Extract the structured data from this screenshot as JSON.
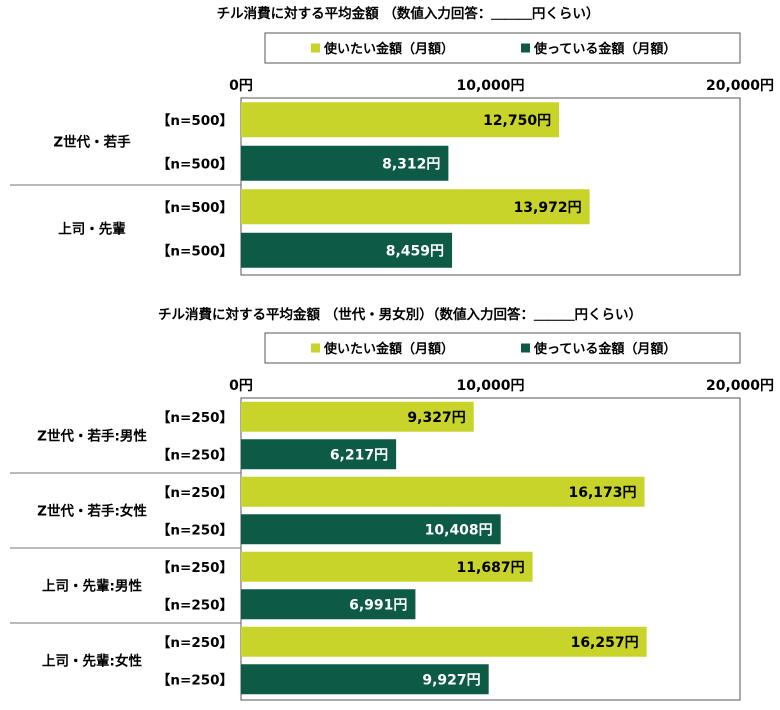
{
  "colors": {
    "want": "#c8d42a",
    "spend": "#0d5a47",
    "frame": "#555555"
  },
  "chart_data": [
    {
      "type": "bar",
      "orientation": "horizontal",
      "title": "チル消費に対する平均金額 （数値入力回答：＿＿＿円くらい）",
      "legend": [
        "使いたい金額（月額）",
        "使っている金額（月額）"
      ],
      "xlim": [
        0,
        20000
      ],
      "ticks": [
        "0円",
        "10,000円",
        "20,000円"
      ],
      "groups": [
        {
          "label": "Z世代・若手",
          "bars": [
            {
              "series": 0,
              "n": "【n=500】",
              "value": 12750,
              "label": "12,750円"
            },
            {
              "series": 1,
              "n": "【n=500】",
              "value": 8312,
              "label": "8,312円"
            }
          ]
        },
        {
          "label": "上司・先輩",
          "bars": [
            {
              "series": 0,
              "n": "【n=500】",
              "value": 13972,
              "label": "13,972円"
            },
            {
              "series": 1,
              "n": "【n=500】",
              "value": 8459,
              "label": "8,459円"
            }
          ]
        }
      ]
    },
    {
      "type": "bar",
      "orientation": "horizontal",
      "title": "チル消費に対する平均金額 （世代・男女別）（数値入力回答：＿＿＿円くらい）",
      "legend": [
        "使いたい金額（月額）",
        "使っている金額（月額）"
      ],
      "xlim": [
        0,
        20000
      ],
      "ticks": [
        "0円",
        "10,000円",
        "20,000円"
      ],
      "groups": [
        {
          "label": "Z世代・若手:男性",
          "bars": [
            {
              "series": 0,
              "n": "【n=250】",
              "value": 9327,
              "label": "9,327円"
            },
            {
              "series": 1,
              "n": "【n=250】",
              "value": 6217,
              "label": "6,217円"
            }
          ]
        },
        {
          "label": "Z世代・若手:女性",
          "bars": [
            {
              "series": 0,
              "n": "【n=250】",
              "value": 16173,
              "label": "16,173円"
            },
            {
              "series": 1,
              "n": "【n=250】",
              "value": 10408,
              "label": "10,408円"
            }
          ]
        },
        {
          "label": "上司・先輩:男性",
          "bars": [
            {
              "series": 0,
              "n": "【n=250】",
              "value": 11687,
              "label": "11,687円"
            },
            {
              "series": 1,
              "n": "【n=250】",
              "value": 6991,
              "label": "6,991円"
            }
          ]
        },
        {
          "label": "上司・先輩:女性",
          "bars": [
            {
              "series": 0,
              "n": "【n=250】",
              "value": 16257,
              "label": "16,257円"
            },
            {
              "series": 1,
              "n": "【n=250】",
              "value": 9927,
              "label": "9,927円"
            }
          ]
        }
      ]
    }
  ]
}
